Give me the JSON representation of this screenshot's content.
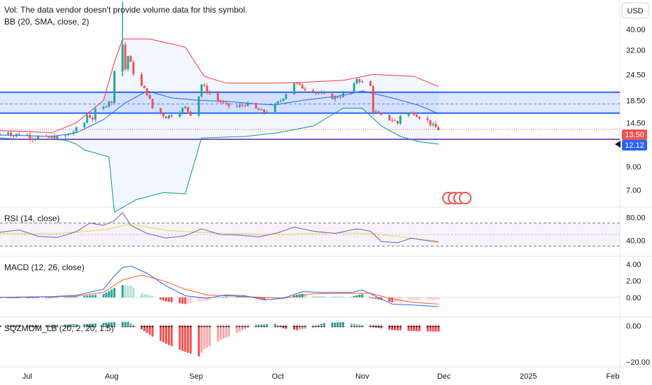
{
  "currency": "USD",
  "legends": {
    "volume": "Vol: The data vendor doesn't provide volume data for this symbol.",
    "bb": "BB (20, SMA, close, 2)",
    "rsi": "RSI (14, close)",
    "macd": "MACD (12, 26, close)",
    "sqz": "SQZMOM_LB (20, 2, 20, 1.5)"
  },
  "colors": {
    "up": "#26a69a",
    "down": "#ef5350",
    "bb_upper": "#f23645",
    "bb_basis": "#2962ff",
    "bb_lower": "#089981",
    "zone": "#2962ff",
    "support": "#7e57c2",
    "rsi": "#7e57c2",
    "rsi_ma": "#e6d94a",
    "macd": "#2962ff",
    "signal": "#ff5722"
  },
  "badges": {
    "last_price": "13.50",
    "support_level": "12.12"
  },
  "chart_data": [
    {
      "type": "candlestick",
      "name": "price",
      "yscale": "log",
      "ylim": [
        5.8,
        55
      ],
      "y_ticks": [
        "40.00",
        "32.00",
        "24.50",
        "18.50",
        "14.50",
        "9.00",
        "7.00"
      ],
      "x_ticks": [
        "Jul",
        "Aug",
        "Sep",
        "Oct",
        "Nov",
        "Dec",
        "2025",
        "Feb"
      ],
      "x_tick_dates": [
        "2024-07-01",
        "2024-08-01",
        "2024-09-01",
        "2024-10-01",
        "2024-11-01",
        "2024-12-01",
        "2025-01-01",
        "2025-02-01"
      ],
      "close_path": [
        [
          "2024-06-21",
          12.8
        ],
        [
          "2024-06-24",
          13.2
        ],
        [
          "2024-06-26",
          12.6
        ],
        [
          "2024-06-28",
          12.9
        ],
        [
          "2024-07-01",
          12.7
        ],
        [
          "2024-07-03",
          12.3
        ],
        [
          "2024-07-05",
          12.5
        ],
        [
          "2024-07-08",
          12.2
        ],
        [
          "2024-07-10",
          12.4
        ],
        [
          "2024-07-12",
          12.3
        ],
        [
          "2024-07-15",
          12.6
        ],
        [
          "2024-07-17",
          12.9
        ],
        [
          "2024-07-19",
          13.5
        ],
        [
          "2024-07-22",
          14.5
        ],
        [
          "2024-07-23",
          15.8
        ],
        [
          "2024-07-25",
          15.2
        ],
        [
          "2024-07-26",
          16.5
        ],
        [
          "2024-07-29",
          17.0
        ],
        [
          "2024-07-31",
          18.5
        ],
        [
          "2024-08-01",
          17.8
        ],
        [
          "2024-08-02",
          26.0
        ],
        [
          "2024-08-05",
          34.0
        ],
        [
          "2024-08-06",
          26.0
        ],
        [
          "2024-08-07",
          30.0
        ],
        [
          "2024-08-09",
          25.0
        ],
        [
          "2024-08-12",
          21.5
        ],
        [
          "2024-08-14",
          20.0
        ],
        [
          "2024-08-16",
          17.0
        ],
        [
          "2024-08-19",
          16.0
        ],
        [
          "2024-08-21",
          15.5
        ],
        [
          "2024-08-23",
          15.8
        ],
        [
          "2024-08-26",
          16.6
        ],
        [
          "2024-08-28",
          17.0
        ],
        [
          "2024-08-30",
          16.0
        ],
        [
          "2024-09-02",
          19.5
        ],
        [
          "2024-09-03",
          22.0
        ],
        [
          "2024-09-05",
          20.5
        ],
        [
          "2024-09-09",
          18.5
        ],
        [
          "2024-09-12",
          17.5
        ],
        [
          "2024-09-16",
          17.2
        ],
        [
          "2024-09-19",
          17.8
        ],
        [
          "2024-09-23",
          16.8
        ],
        [
          "2024-09-26",
          16.2
        ],
        [
          "2024-09-30",
          17.5
        ],
        [
          "2024-10-02",
          18.5
        ],
        [
          "2024-10-04",
          20.0
        ],
        [
          "2024-10-07",
          22.5
        ],
        [
          "2024-10-09",
          21.5
        ],
        [
          "2024-10-14",
          20.5
        ],
        [
          "2024-10-18",
          19.5
        ],
        [
          "2024-10-22",
          19.0
        ],
        [
          "2024-10-25",
          19.8
        ],
        [
          "2024-10-28",
          20.0
        ],
        [
          "2024-10-30",
          23.5
        ],
        [
          "2024-11-01",
          22.5
        ],
        [
          "2024-11-04",
          21.5
        ],
        [
          "2024-11-05",
          16.5
        ],
        [
          "2024-11-08",
          15.5
        ],
        [
          "2024-11-12",
          15.0
        ],
        [
          "2024-11-14",
          14.4
        ],
        [
          "2024-11-15",
          15.8
        ],
        [
          "2024-11-18",
          16.0
        ],
        [
          "2024-11-20",
          16.2
        ],
        [
          "2024-11-22",
          15.5
        ],
        [
          "2024-11-25",
          14.8
        ],
        [
          "2024-11-27",
          14.0
        ],
        [
          "2024-11-29",
          13.5
        ]
      ],
      "bb_upper": [
        [
          "2024-06-21",
          13.3
        ],
        [
          "2024-07-01",
          13.2
        ],
        [
          "2024-07-10",
          13.0
        ],
        [
          "2024-07-19",
          14.5
        ],
        [
          "2024-07-29",
          18.5
        ],
        [
          "2024-08-02",
          28.0
        ],
        [
          "2024-08-05",
          36.0
        ],
        [
          "2024-08-15",
          36.0
        ],
        [
          "2024-08-28",
          33.0
        ],
        [
          "2024-09-04",
          24.0
        ],
        [
          "2024-09-12",
          22.3
        ],
        [
          "2024-09-30",
          22.3
        ],
        [
          "2024-10-10",
          22.5
        ],
        [
          "2024-10-25",
          23.0
        ],
        [
          "2024-11-05",
          24.5
        ],
        [
          "2024-11-20",
          24.0
        ],
        [
          "2024-11-29",
          21.5
        ]
      ],
      "bb_basis": [
        [
          "2024-06-21",
          12.7
        ],
        [
          "2024-07-01",
          12.6
        ],
        [
          "2024-07-10",
          12.5
        ],
        [
          "2024-07-19",
          13.0
        ],
        [
          "2024-07-29",
          15.0
        ],
        [
          "2024-08-06",
          18.0
        ],
        [
          "2024-08-14",
          20.5
        ],
        [
          "2024-08-23",
          19.0
        ],
        [
          "2024-09-02",
          18.5
        ],
        [
          "2024-09-12",
          18.3
        ],
        [
          "2024-09-23",
          17.8
        ],
        [
          "2024-09-30",
          17.6
        ],
        [
          "2024-10-10",
          18.5
        ],
        [
          "2024-10-25",
          19.5
        ],
        [
          "2024-11-01",
          20.5
        ],
        [
          "2024-11-12",
          19.0
        ],
        [
          "2024-11-22",
          17.5
        ],
        [
          "2024-11-29",
          16.0
        ]
      ],
      "bb_lower": [
        [
          "2024-06-21",
          12.3
        ],
        [
          "2024-07-01",
          12.1
        ],
        [
          "2024-07-10",
          12.1
        ],
        [
          "2024-07-15",
          12.0
        ],
        [
          "2024-07-19",
          11.5
        ],
        [
          "2024-07-22",
          10.8
        ],
        [
          "2024-07-31",
          10.0
        ],
        [
          "2024-08-02",
          5.5
        ],
        [
          "2024-08-10",
          6.3
        ],
        [
          "2024-08-20",
          6.8
        ],
        [
          "2024-08-28",
          6.7
        ],
        [
          "2024-09-03",
          12.3
        ],
        [
          "2024-09-19",
          12.5
        ],
        [
          "2024-10-01",
          13.0
        ],
        [
          "2024-10-14",
          14.0
        ],
        [
          "2024-10-25",
          17.0
        ],
        [
          "2024-11-01",
          17.0
        ],
        [
          "2024-11-08",
          14.0
        ],
        [
          "2024-11-15",
          12.5
        ],
        [
          "2024-11-22",
          11.8
        ],
        [
          "2024-11-29",
          11.5
        ]
      ],
      "zone": {
        "top": 20.2,
        "bottom": 16.1,
        "mid": 17.8
      },
      "support": 12.12,
      "last_price": 13.5
    },
    {
      "type": "line",
      "name": "RSI (14, close)",
      "y_ticks": [
        "80.00",
        "40.00"
      ],
      "band": [
        70,
        30
      ],
      "midline": 50,
      "ylim": [
        15,
        95
      ],
      "rsi": [
        [
          "2024-06-21",
          54
        ],
        [
          "2024-06-28",
          58
        ],
        [
          "2024-07-05",
          47
        ],
        [
          "2024-07-12",
          45
        ],
        [
          "2024-07-19",
          55
        ],
        [
          "2024-07-24",
          70
        ],
        [
          "2024-07-29",
          66
        ],
        [
          "2024-08-02",
          74
        ],
        [
          "2024-08-05",
          88
        ],
        [
          "2024-08-08",
          66
        ],
        [
          "2024-08-14",
          52
        ],
        [
          "2024-08-21",
          44
        ],
        [
          "2024-08-28",
          48
        ],
        [
          "2024-09-03",
          60
        ],
        [
          "2024-09-10",
          50
        ],
        [
          "2024-09-17",
          49
        ],
        [
          "2024-09-24",
          46
        ],
        [
          "2024-10-01",
          53
        ],
        [
          "2024-10-07",
          63
        ],
        [
          "2024-10-14",
          56
        ],
        [
          "2024-10-22",
          52
        ],
        [
          "2024-10-30",
          60
        ],
        [
          "2024-11-04",
          56
        ],
        [
          "2024-11-08",
          38
        ],
        [
          "2024-11-14",
          36
        ],
        [
          "2024-11-19",
          44
        ],
        [
          "2024-11-24",
          40
        ],
        [
          "2024-11-29",
          37
        ]
      ],
      "rsi_ma": [
        [
          "2024-06-21",
          52
        ],
        [
          "2024-07-10",
          51
        ],
        [
          "2024-07-29",
          58
        ],
        [
          "2024-08-08",
          68
        ],
        [
          "2024-08-22",
          57
        ],
        [
          "2024-09-10",
          52
        ],
        [
          "2024-10-01",
          50
        ],
        [
          "2024-10-20",
          53
        ],
        [
          "2024-11-05",
          52
        ],
        [
          "2024-11-20",
          43
        ],
        [
          "2024-11-29",
          39
        ]
      ]
    },
    {
      "type": "line",
      "name": "MACD (12, 26, close)",
      "y_ticks": [
        "4.00",
        "2.00",
        "0.00"
      ],
      "ylim": [
        -2.2,
        4.8
      ],
      "macd": [
        [
          "2024-06-21",
          0.0
        ],
        [
          "2024-07-10",
          0.1
        ],
        [
          "2024-07-19",
          0.25
        ],
        [
          "2024-07-29",
          1.0
        ],
        [
          "2024-08-02",
          2.6
        ],
        [
          "2024-08-05",
          3.6
        ],
        [
          "2024-08-08",
          3.8
        ],
        [
          "2024-08-14",
          2.9
        ],
        [
          "2024-08-21",
          1.4
        ],
        [
          "2024-08-28",
          0.2
        ],
        [
          "2024-09-05",
          -0.1
        ],
        [
          "2024-09-12",
          0.3
        ],
        [
          "2024-09-19",
          0.2
        ],
        [
          "2024-09-26",
          -0.3
        ],
        [
          "2024-10-03",
          -0.1
        ],
        [
          "2024-10-10",
          0.7
        ],
        [
          "2024-10-18",
          0.6
        ],
        [
          "2024-10-28",
          0.6
        ],
        [
          "2024-11-01",
          0.9
        ],
        [
          "2024-11-05",
          0.3
        ],
        [
          "2024-11-12",
          -0.8
        ],
        [
          "2024-11-19",
          -0.9
        ],
        [
          "2024-11-29",
          -1.1
        ]
      ],
      "signal": [
        [
          "2024-06-21",
          0.0
        ],
        [
          "2024-07-19",
          0.15
        ],
        [
          "2024-07-29",
          0.6
        ],
        [
          "2024-08-05",
          2.1
        ],
        [
          "2024-08-12",
          2.7
        ],
        [
          "2024-08-20",
          2.0
        ],
        [
          "2024-08-28",
          1.0
        ],
        [
          "2024-09-05",
          0.3
        ],
        [
          "2024-09-19",
          0.1
        ],
        [
          "2024-10-03",
          -0.1
        ],
        [
          "2024-10-14",
          0.45
        ],
        [
          "2024-10-28",
          0.5
        ],
        [
          "2024-11-04",
          0.5
        ],
        [
          "2024-11-12",
          -0.2
        ],
        [
          "2024-11-20",
          -0.6
        ],
        [
          "2024-11-29",
          -0.8
        ]
      ]
    },
    {
      "type": "bar",
      "name": "SQZMOM_LB (20, 2, 20, 1.5)",
      "y_ticks": [
        "0.00",
        "−20.00"
      ],
      "ylim": [
        -22,
        4
      ],
      "momentum": [
        [
          "2024-06-21",
          0.3
        ],
        [
          "2024-07-10",
          0.4
        ],
        [
          "2024-07-24",
          1.0
        ],
        [
          "2024-08-02",
          2.0
        ],
        [
          "2024-08-07",
          2.2
        ],
        [
          "2024-08-09",
          0.5
        ],
        [
          "2024-08-12",
          -2.0
        ],
        [
          "2024-08-16",
          -6.0
        ],
        [
          "2024-08-21",
          -10.0
        ],
        [
          "2024-08-27",
          -14.0
        ],
        [
          "2024-09-02",
          -17.0
        ],
        [
          "2024-09-04",
          -13.0
        ],
        [
          "2024-09-10",
          -8.0
        ],
        [
          "2024-09-16",
          -4.0
        ],
        [
          "2024-09-20",
          -1.0
        ],
        [
          "2024-09-23",
          0.5
        ],
        [
          "2024-09-30",
          1.0
        ],
        [
          "2024-10-03",
          -1.5
        ],
        [
          "2024-10-08",
          -2.5
        ],
        [
          "2024-10-14",
          -1.0
        ],
        [
          "2024-10-18",
          1.5
        ],
        [
          "2024-10-25",
          2.0
        ],
        [
          "2024-10-31",
          0.5
        ],
        [
          "2024-11-06",
          -1.0
        ],
        [
          "2024-11-12",
          -2.5
        ],
        [
          "2024-11-20",
          -3.0
        ],
        [
          "2024-11-29",
          -3.3
        ]
      ]
    }
  ]
}
